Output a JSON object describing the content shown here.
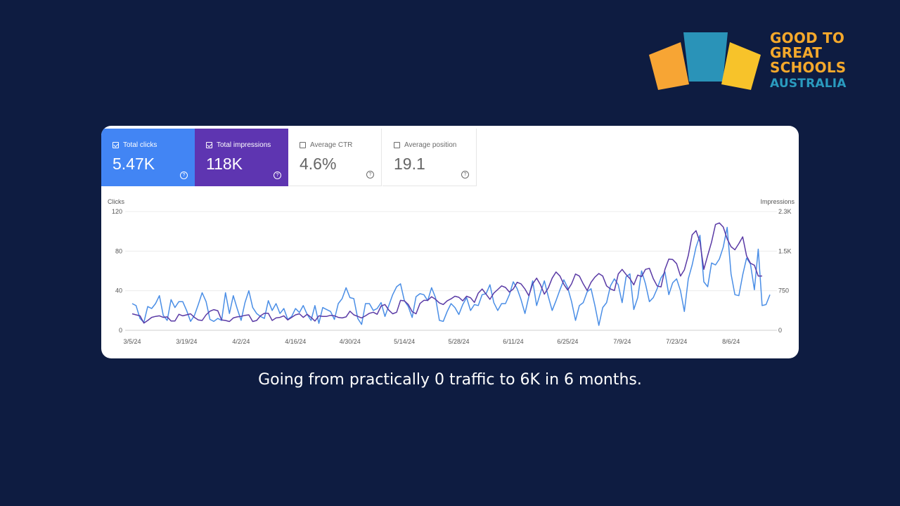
{
  "logo": {
    "lines": [
      "GOOD TO",
      "GREAT",
      "SCHOOLS",
      "AUSTRALIA"
    ],
    "colors": [
      "#f7a534",
      "#2a93b8",
      "#f7c32a"
    ]
  },
  "metrics": [
    {
      "label": "Total clicks",
      "value": "5.47K",
      "checked": true,
      "color": "#4285f4"
    },
    {
      "label": "Total impressions",
      "value": "118K",
      "checked": true,
      "color": "#5e35b1"
    },
    {
      "label": "Average CTR",
      "value": "4.6%",
      "checked": false
    },
    {
      "label": "Average position",
      "value": "19.1",
      "checked": false
    }
  ],
  "chart_data": {
    "type": "line",
    "left_axis_label": "Clicks",
    "right_axis_label": "Impressions",
    "left_ylim": [
      0,
      120
    ],
    "right_ylim": [
      0,
      2300
    ],
    "left_ticks": [
      "0",
      "40",
      "80",
      "120"
    ],
    "right_ticks": [
      "0",
      "750",
      "1.5K",
      "2.3K"
    ],
    "x_tick_labels": [
      "3/5/24",
      "3/19/24",
      "4/2/24",
      "4/16/24",
      "4/30/24",
      "5/14/24",
      "5/28/24",
      "6/11/24",
      "6/25/24",
      "7/9/24",
      "7/23/24",
      "8/6/24"
    ],
    "x_tick_indices": [
      0,
      14,
      28,
      42,
      56,
      70,
      84,
      98,
      112,
      126,
      140,
      154
    ],
    "grid": true,
    "series": [
      {
        "name": "Clicks",
        "axis": "left",
        "color": "#4a8ee6",
        "values": [
          27,
          25,
          12,
          8,
          24,
          22,
          27,
          35,
          15,
          10,
          31,
          23,
          29,
          29,
          20,
          9,
          15,
          26,
          38,
          29,
          11,
          9,
          12,
          10,
          38,
          17,
          35,
          22,
          10,
          28,
          40,
          23,
          17,
          14,
          12,
          30,
          20,
          27,
          17,
          22,
          11,
          14,
          22,
          18,
          25,
          16,
          10,
          25,
          7,
          23,
          21,
          19,
          11,
          27,
          32,
          43,
          33,
          32,
          12,
          6,
          27,
          27,
          20,
          22,
          28,
          14,
          25,
          36,
          44,
          47,
          30,
          24,
          13,
          34,
          37,
          36,
          30,
          43,
          33,
          10,
          9,
          19,
          27,
          23,
          16,
          26,
          33,
          20,
          26,
          25,
          36,
          37,
          46,
          28,
          20,
          27,
          27,
          36,
          49,
          42,
          31,
          17,
          34,
          50,
          25,
          38,
          50,
          34,
          20,
          30,
          41,
          51,
          43,
          29,
          10,
          25,
          28,
          39,
          42,
          25,
          5,
          23,
          28,
          45,
          52,
          46,
          28,
          54,
          57,
          21,
          33,
          60,
          47,
          29,
          33,
          42,
          53,
          59,
          36,
          48,
          52,
          40,
          19,
          52,
          66,
          84,
          96,
          49,
          44,
          68,
          66,
          72,
          84,
          104,
          57,
          36,
          35,
          56,
          73,
          67,
          41,
          82,
          25,
          26,
          36
        ]
      },
      {
        "name": "Impressions",
        "axis": "right",
        "color": "#5a3aa5",
        "values": [
          320,
          300,
          280,
          140,
          190,
          250,
          270,
          280,
          250,
          260,
          180,
          180,
          310,
          280,
          300,
          320,
          250,
          200,
          190,
          300,
          370,
          400,
          380,
          200,
          190,
          170,
          240,
          260,
          270,
          290,
          300,
          170,
          190,
          280,
          330,
          330,
          190,
          240,
          250,
          280,
          200,
          250,
          300,
          320,
          250,
          310,
          250,
          180,
          280,
          270,
          270,
          290,
          280,
          250,
          240,
          260,
          370,
          300,
          270,
          240,
          280,
          330,
          350,
          310,
          470,
          500,
          390,
          320,
          350,
          580,
          570,
          500,
          360,
          320,
          520,
          580,
          580,
          650,
          600,
          530,
          500,
          570,
          610,
          660,
          640,
          570,
          660,
          630,
          540,
          720,
          800,
          700,
          600,
          720,
          790,
          860,
          830,
          740,
          800,
          930,
          900,
          800,
          670,
          900,
          1010,
          880,
          700,
          820,
          1010,
          1130,
          1050,
          890,
          780,
          900,
          1090,
          1050,
          900,
          770,
          930,
          1030,
          1100,
          1050,
          860,
          800,
          770,
          1090,
          1180,
          1080,
          1000,
          880,
          1070,
          1040,
          1180,
          1200,
          1000,
          860,
          840,
          1180,
          1380,
          1370,
          1290,
          1050,
          1170,
          1450,
          1850,
          1930,
          1710,
          1180,
          1450,
          1710,
          2050,
          2080,
          2000,
          1770,
          1620,
          1560,
          1680,
          1810,
          1440,
          1300,
          1260,
          1050,
          1050
        ]
      }
    ]
  },
  "caption": "Going from practically 0 traffic to 6K in 6 months."
}
